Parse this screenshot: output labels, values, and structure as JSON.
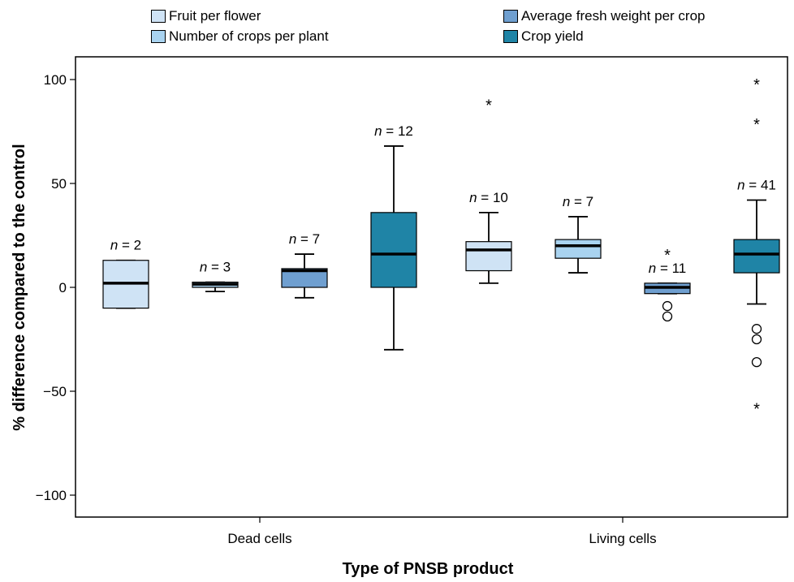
{
  "chart_data": {
    "type": "boxplot",
    "xlabel": "Type of PNSB product",
    "ylabel": "% difference compared to the control",
    "ylim": [
      -110,
      110
    ],
    "yticks": [
      100,
      50,
      0,
      -50,
      -100
    ],
    "categories": [
      "Dead cells",
      "Living cells"
    ],
    "legend_position": "top",
    "series": [
      {
        "name": "Fruit per flower",
        "color": "#cfe3f5"
      },
      {
        "name": "Number of crops per plant",
        "color": "#a9d3f0"
      },
      {
        "name": "Average fresh weight per crop",
        "color": "#6f9fd0"
      },
      {
        "name": "Crop yield",
        "color": "#1f84a6"
      }
    ],
    "boxes": [
      {
        "category": "Dead cells",
        "series": "Fruit per flower",
        "n_label": "n = 2",
        "whisker_low": -10,
        "q1": -10,
        "median": 2,
        "q3": 13,
        "whisker_high": 13,
        "outliers": [],
        "extremes": []
      },
      {
        "category": "Dead cells",
        "series": "Number of crops per plant",
        "n_label": "n = 3",
        "whisker_low": -2,
        "q1": 0,
        "median": 1.5,
        "q3": 2.5,
        "whisker_high": 2.5,
        "outliers": [],
        "extremes": []
      },
      {
        "category": "Dead cells",
        "series": "Average fresh weight per crop",
        "n_label": "n = 7",
        "whisker_low": -5,
        "q1": 0,
        "median": 8,
        "q3": 9,
        "whisker_high": 16,
        "outliers": [],
        "extremes": []
      },
      {
        "category": "Dead cells",
        "series": "Crop yield",
        "n_label": "n = 12",
        "whisker_low": -30,
        "q1": 0,
        "median": 16,
        "q3": 36,
        "whisker_high": 68,
        "outliers": [],
        "extremes": []
      },
      {
        "category": "Living cells",
        "series": "Fruit per flower",
        "n_label": "n = 10",
        "whisker_low": 2,
        "q1": 8,
        "median": 18,
        "q3": 22,
        "whisker_high": 36,
        "outliers": [],
        "extremes": [
          88
        ]
      },
      {
        "category": "Living cells",
        "series": "Number of crops per plant",
        "n_label": "n = 7",
        "whisker_low": 7,
        "q1": 14,
        "median": 20,
        "q3": 23,
        "whisker_high": 34,
        "outliers": [],
        "extremes": []
      },
      {
        "category": "Living cells",
        "series": "Average fresh weight per crop",
        "n_label": "n = 11",
        "whisker_low": -3,
        "q1": -3,
        "median": 0,
        "q3": 2,
        "whisker_high": 2,
        "outliers": [
          -9,
          -14
        ],
        "extremes": [
          16
        ]
      },
      {
        "category": "Living cells",
        "series": "Crop yield",
        "n_label": "n = 41",
        "whisker_low": -8,
        "q1": 7,
        "median": 16,
        "q3": 23,
        "whisker_high": 42,
        "outliers": [
          -20,
          -25,
          -36
        ],
        "extremes": [
          98,
          79,
          -58
        ]
      }
    ]
  }
}
